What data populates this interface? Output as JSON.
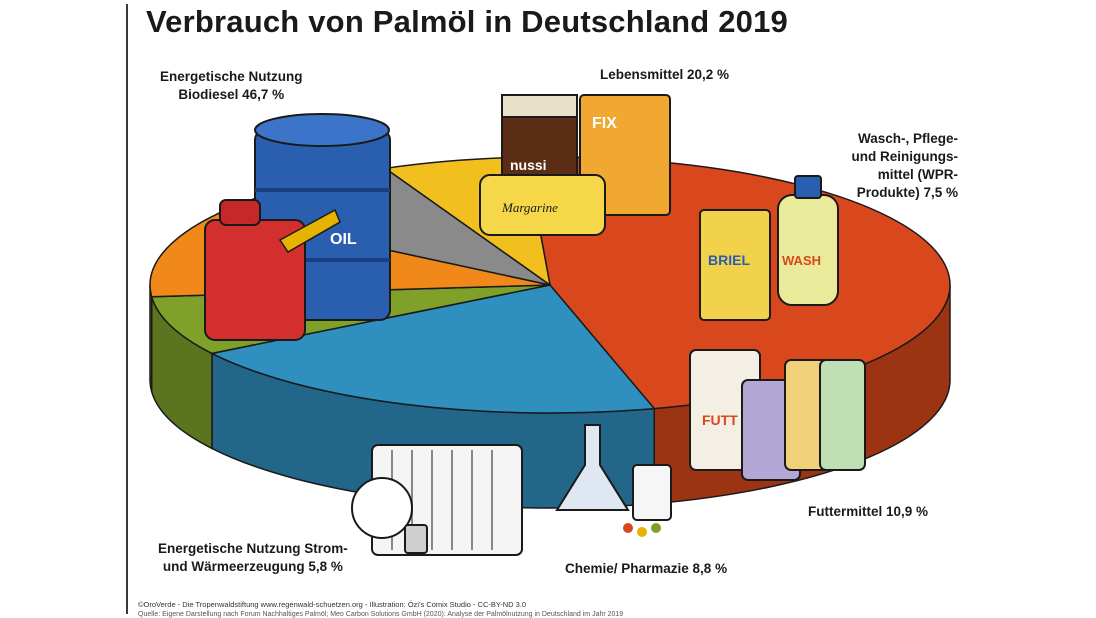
{
  "header": {
    "title": "Verbrauch von Palmöl in Deutschland 2019"
  },
  "labels": {
    "biodiesel": [
      "Energetische Nutzung",
      "Biodiesel 46,7 %"
    ],
    "lebensmittel": [
      "Lebensmittel 20,2 %"
    ],
    "wpr": [
      "Wasch-, Pflege-",
      "und Reinigungs-",
      "mittel (WPR-",
      "Produkte) 7,5 %"
    ],
    "futtermittel": [
      "Futtermittel 10,9 %"
    ],
    "chemie": [
      "Chemie/ Pharmazie 8,8 %"
    ],
    "strom": [
      "Energetische Nutzung Strom-",
      "und Wärmeerzeugung 5,8 %"
    ]
  },
  "illustration_text": {
    "oil": "OIL",
    "margarine": "Margarine",
    "nussi": "nussi",
    "fix": "FIX",
    "briel": "BRIEL",
    "wash": "WASH",
    "futt": "FUTT"
  },
  "footer": {
    "credit": "©OroVerde - Die Tropenwaldstiftung www.regenwald-schuetzen.org - Illustration: Özi's Comix Studio - CC-BY-ND 3.0",
    "source": "Quelle: Eigene Darstellung nach Forum Nachhaltiges Palmöl; Meo Carbon Solutions GmbH (2020): Analyse der Palmölnutzung in Deutschland im Jahr 2019"
  },
  "colors": {
    "biodiesel": "#d9481c",
    "lebensmittel": "#2f8fbf",
    "wpr": "#7fa12a",
    "futtermittel": "#f0891a",
    "chemie": "#8a8a8a",
    "strom": "#f2c01e"
  },
  "chart_data": {
    "type": "pie",
    "title": "Verbrauch von Palmöl in Deutschland 2019",
    "unit": "%",
    "categories": [
      "Energetische Nutzung Biodiesel",
      "Lebensmittel",
      "Wasch-, Pflege- und Reinigungsmittel (WPR-Produkte)",
      "Futtermittel",
      "Chemie/ Pharmazie",
      "Energetische Nutzung Strom- und Wärmeerzeugung"
    ],
    "values": [
      46.7,
      20.2,
      7.5,
      10.9,
      8.8,
      5.8
    ],
    "legend": "none"
  }
}
